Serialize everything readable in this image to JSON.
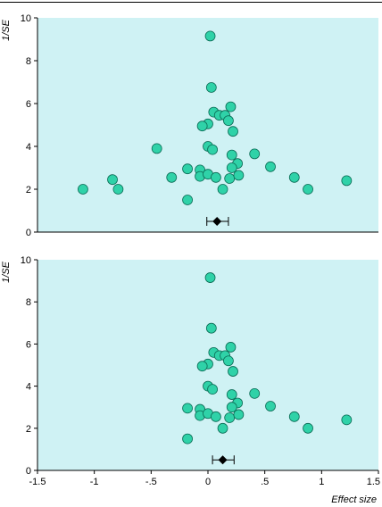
{
  "chart_data": [
    {
      "type": "scatter",
      "title": "",
      "xlabel": "",
      "ylabel": "1/SE",
      "xlim": [
        -1.5,
        1.5
      ],
      "ylim": [
        0,
        10
      ],
      "yticks": [
        0,
        2,
        4,
        6,
        8,
        10
      ],
      "show_x_tick_labels": false,
      "grid": false,
      "background_color": "#cff2f4",
      "marker_color": "#2fd2a8",
      "marker_edge_color": "#0b6b55",
      "points": [
        {
          "x": 0.02,
          "y": 9.15
        },
        {
          "x": 0.03,
          "y": 6.75
        },
        {
          "x": 0.05,
          "y": 5.6
        },
        {
          "x": 0.1,
          "y": 5.45
        },
        {
          "x": 0.15,
          "y": 5.45
        },
        {
          "x": 0.2,
          "y": 5.85
        },
        {
          "x": 0.18,
          "y": 5.2
        },
        {
          "x": 0.0,
          "y": 5.05
        },
        {
          "x": -0.05,
          "y": 4.95
        },
        {
          "x": 0.22,
          "y": 4.7
        },
        {
          "x": 0.0,
          "y": 4.0
        },
        {
          "x": 0.04,
          "y": 3.85
        },
        {
          "x": -0.45,
          "y": 3.9
        },
        {
          "x": 0.21,
          "y": 3.6
        },
        {
          "x": 0.41,
          "y": 3.65
        },
        {
          "x": 0.26,
          "y": 3.2
        },
        {
          "x": 0.21,
          "y": 3.0
        },
        {
          "x": 0.55,
          "y": 3.05
        },
        {
          "x": -0.18,
          "y": 2.95
        },
        {
          "x": -0.07,
          "y": 2.9
        },
        {
          "x": -0.32,
          "y": 2.55
        },
        {
          "x": -0.07,
          "y": 2.6
        },
        {
          "x": 0.0,
          "y": 2.7
        },
        {
          "x": 0.07,
          "y": 2.55
        },
        {
          "x": 0.19,
          "y": 2.5
        },
        {
          "x": 0.27,
          "y": 2.65
        },
        {
          "x": -0.84,
          "y": 2.45
        },
        {
          "x": 0.76,
          "y": 2.55
        },
        {
          "x": 1.22,
          "y": 2.4
        },
        {
          "x": -1.1,
          "y": 2.0
        },
        {
          "x": -0.79,
          "y": 2.0
        },
        {
          "x": 0.13,
          "y": 2.0
        },
        {
          "x": 0.88,
          "y": 2.0
        },
        {
          "x": -0.18,
          "y": 1.5
        }
      ],
      "summary_estimate": {
        "x": 0.08,
        "ci_low": -0.01,
        "ci_high": 0.18,
        "y": 0.5
      }
    },
    {
      "type": "scatter",
      "title": "",
      "xlabel": "Effect size",
      "ylabel": "1/SE",
      "xlim": [
        -1.5,
        1.5
      ],
      "ylim": [
        0,
        10
      ],
      "xticks": [
        -1.5,
        -1,
        -0.5,
        0,
        0.5,
        1,
        1.5
      ],
      "yticks": [
        0,
        2,
        4,
        6,
        8,
        10
      ],
      "show_x_tick_labels": true,
      "grid": false,
      "background_color": "#cff2f4",
      "marker_color": "#2fd2a8",
      "marker_edge_color": "#0b6b55",
      "points": [
        {
          "x": 0.02,
          "y": 9.15
        },
        {
          "x": 0.03,
          "y": 6.75
        },
        {
          "x": 0.05,
          "y": 5.6
        },
        {
          "x": 0.1,
          "y": 5.45
        },
        {
          "x": 0.15,
          "y": 5.45
        },
        {
          "x": 0.2,
          "y": 5.85
        },
        {
          "x": 0.18,
          "y": 5.2
        },
        {
          "x": 0.0,
          "y": 5.05
        },
        {
          "x": -0.05,
          "y": 4.95
        },
        {
          "x": 0.22,
          "y": 4.7
        },
        {
          "x": 0.0,
          "y": 4.0
        },
        {
          "x": 0.04,
          "y": 3.85
        },
        {
          "x": 0.21,
          "y": 3.6
        },
        {
          "x": 0.41,
          "y": 3.65
        },
        {
          "x": 0.26,
          "y": 3.2
        },
        {
          "x": 0.21,
          "y": 3.0
        },
        {
          "x": 0.55,
          "y": 3.05
        },
        {
          "x": -0.18,
          "y": 2.95
        },
        {
          "x": -0.07,
          "y": 2.9
        },
        {
          "x": -0.07,
          "y": 2.6
        },
        {
          "x": 0.0,
          "y": 2.7
        },
        {
          "x": 0.07,
          "y": 2.55
        },
        {
          "x": 0.19,
          "y": 2.5
        },
        {
          "x": 0.27,
          "y": 2.65
        },
        {
          "x": 0.76,
          "y": 2.55
        },
        {
          "x": 1.22,
          "y": 2.4
        },
        {
          "x": 0.13,
          "y": 2.0
        },
        {
          "x": 0.88,
          "y": 2.0
        },
        {
          "x": -0.18,
          "y": 1.5
        }
      ],
      "summary_estimate": {
        "x": 0.13,
        "ci_low": 0.04,
        "ci_high": 0.23,
        "y": 0.5
      }
    }
  ]
}
